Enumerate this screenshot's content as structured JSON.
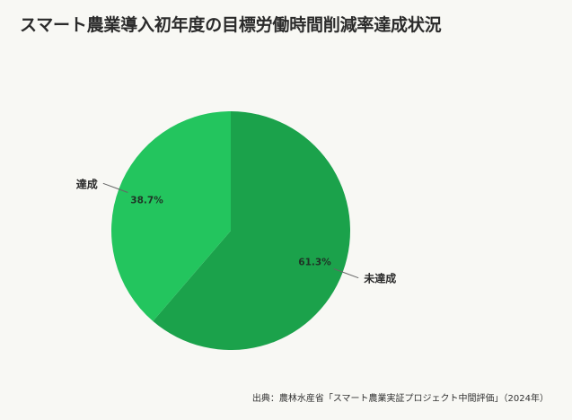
{
  "colors": {
    "background": "#f8f8f4",
    "slice_not_achieved": "#1ba24b",
    "slice_achieved": "#23c55e",
    "text": "#2b2b2b"
  },
  "header": {
    "title": "スマート農業導入初年度の目標労働時間削減率達成状況"
  },
  "footer": {
    "source": "出典：農林水産省「スマート農業実証プロジェクト中間評価」（2024年）"
  },
  "chart_data": {
    "type": "pie",
    "title": "スマート農業導入初年度の目標労働時間削減率達成状況",
    "start_angle_deg": 0,
    "direction": "clockwise",
    "slices": [
      {
        "label": "未達成",
        "value": 61.3,
        "value_label": "61.3%",
        "color": "#1ba24b"
      },
      {
        "label": "達成",
        "value": 38.7,
        "value_label": "38.7%",
        "color": "#23c55e"
      }
    ]
  }
}
